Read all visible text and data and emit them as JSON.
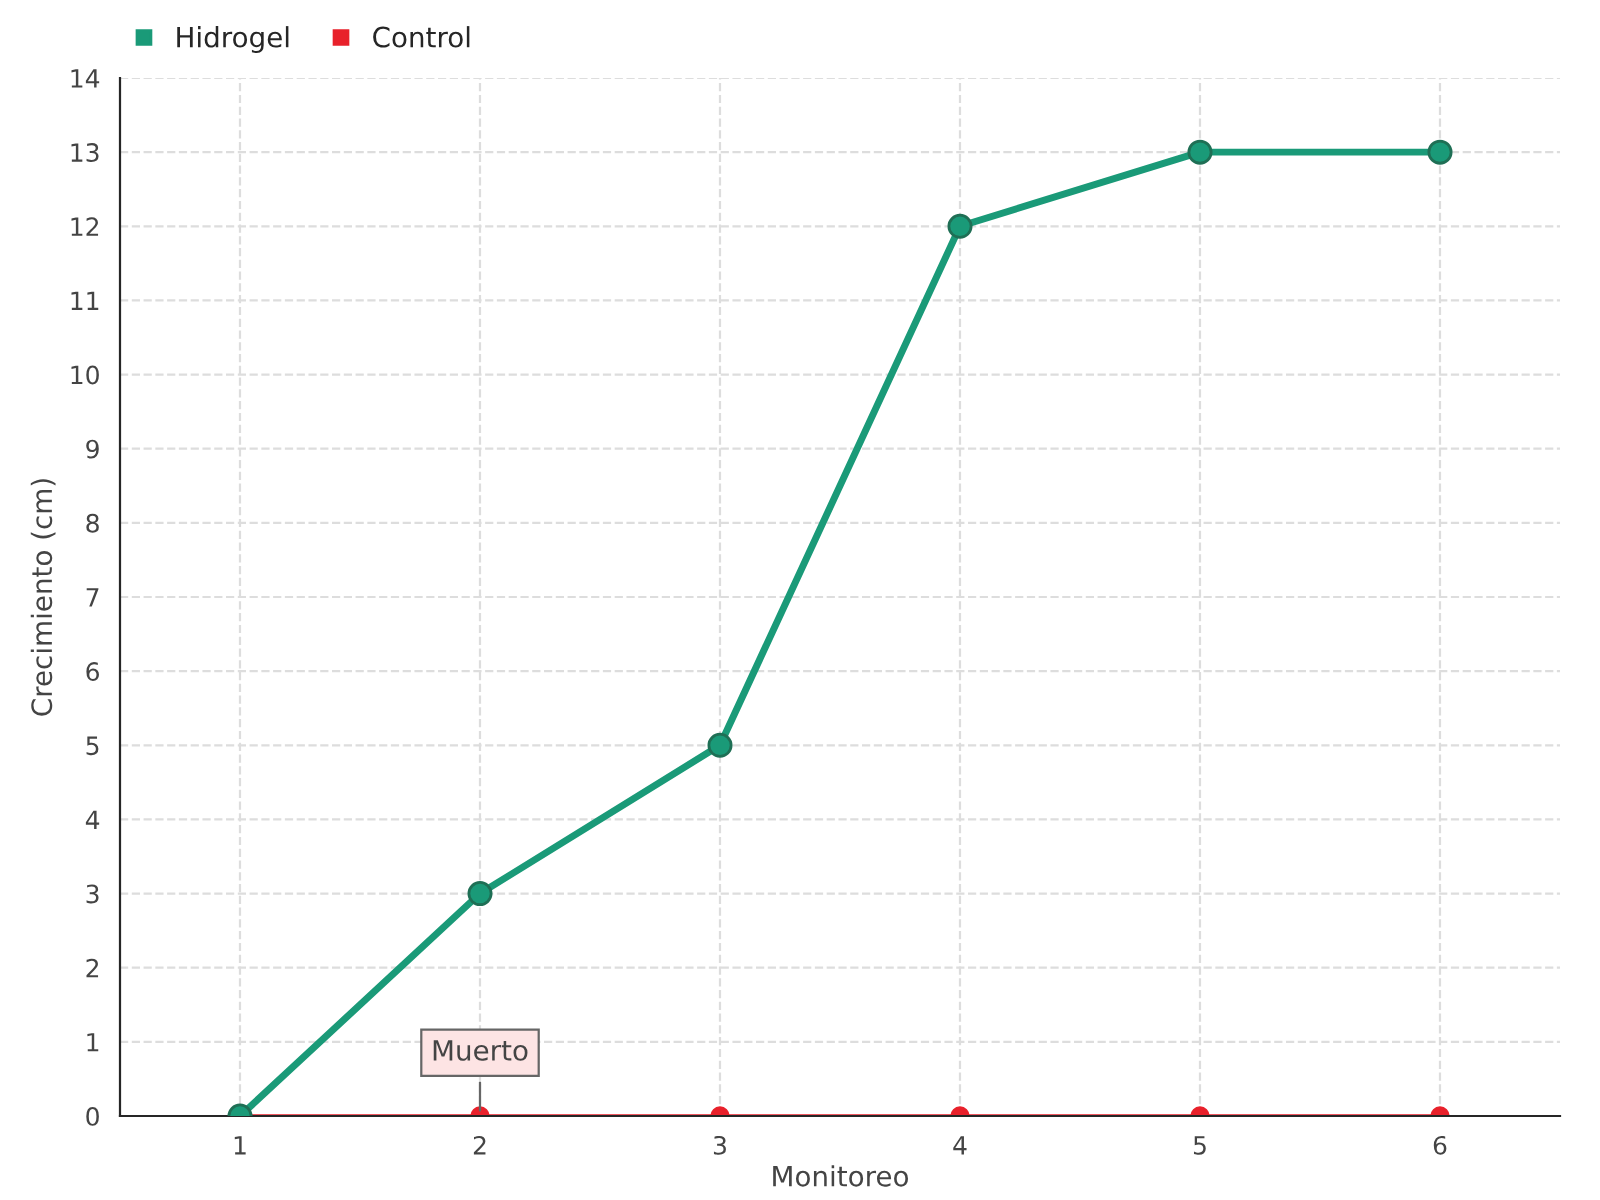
{
  "chart_data": {
    "type": "line",
    "xlabel": "Monitoreo",
    "ylabel": "Crecimiento (cm)",
    "categories": [
      "1",
      "2",
      "3",
      "4",
      "5",
      "6"
    ],
    "series": [
      {
        "name": "Hidrogel",
        "color": "#1a9a78",
        "values": [
          0,
          3,
          5,
          12,
          13,
          13
        ]
      },
      {
        "name": "Control",
        "color": "#e8212b",
        "values": [
          0,
          0,
          0,
          0,
          0,
          0
        ]
      }
    ],
    "ylim": [
      0,
      14
    ],
    "yticks": [
      0,
      1,
      2,
      3,
      4,
      5,
      6,
      7,
      8,
      9,
      10,
      11,
      12,
      13,
      14
    ],
    "grid": true,
    "legend": "top left",
    "marker": "circle",
    "line_style": "solid",
    "annotations": [
      {
        "text": "Muerto",
        "x": "2",
        "y": 0
      }
    ]
  }
}
